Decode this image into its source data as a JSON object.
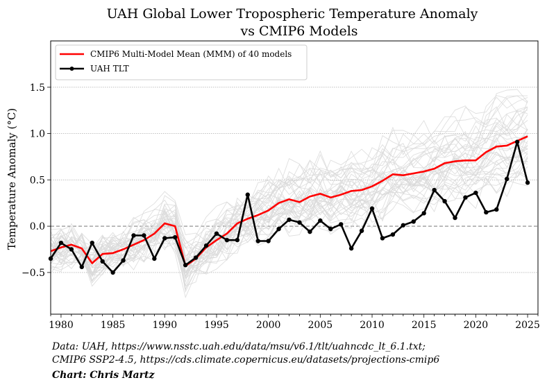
{
  "chart_data": {
    "type": "line",
    "title": "UAH Global Lower Tropospheric Temperature Anomaly",
    "subtitle": "vs CMIP6 Models",
    "xlabel": "",
    "ylabel": "Temperature Anomaly (°C)",
    "xlim": [
      1979,
      2026
    ],
    "ylim": [
      -0.95,
      2.0
    ],
    "x_ticks": [
      1980,
      1985,
      1990,
      1995,
      2000,
      2005,
      2010,
      2015,
      2020,
      2025
    ],
    "y_ticks": [
      -0.5,
      0.0,
      0.5,
      1.0,
      1.5
    ],
    "grid": "horizontal dotted",
    "zero_line": "dashed",
    "legend_position": "top-left",
    "colors": {
      "mmm": "#ff0000",
      "uah": "#000000",
      "models": "#d9d9d9"
    },
    "x": [
      1979,
      1980,
      1981,
      1982,
      1983,
      1984,
      1985,
      1986,
      1987,
      1988,
      1989,
      1990,
      1991,
      1992,
      1993,
      1994,
      1995,
      1996,
      1997,
      1998,
      1999,
      2000,
      2001,
      2002,
      2003,
      2004,
      2005,
      2006,
      2007,
      2008,
      2009,
      2010,
      2011,
      2012,
      2013,
      2014,
      2015,
      2016,
      2017,
      2018,
      2019,
      2020,
      2021,
      2022,
      2023,
      2024,
      2025
    ],
    "series": [
      {
        "name": "CMIP6 Multi-Model Mean (MMM) of 40 models",
        "values": [
          -0.27,
          -0.23,
          -0.2,
          -0.24,
          -0.4,
          -0.3,
          -0.29,
          -0.25,
          -0.2,
          -0.15,
          -0.08,
          0.03,
          0.0,
          -0.43,
          -0.35,
          -0.23,
          -0.15,
          -0.08,
          0.03,
          0.08,
          0.12,
          0.17,
          0.25,
          0.29,
          0.26,
          0.32,
          0.35,
          0.31,
          0.34,
          0.38,
          0.39,
          0.43,
          0.49,
          0.56,
          0.55,
          0.57,
          0.59,
          0.62,
          0.68,
          0.7,
          0.71,
          0.71,
          0.8,
          0.86,
          0.87,
          0.92,
          0.97
        ]
      },
      {
        "name": "UAH TLT",
        "values": [
          -0.35,
          -0.18,
          -0.25,
          -0.44,
          -0.18,
          -0.38,
          -0.5,
          -0.37,
          -0.1,
          -0.1,
          -0.35,
          -0.13,
          -0.12,
          -0.42,
          -0.34,
          -0.21,
          -0.08,
          -0.15,
          -0.15,
          0.34,
          -0.16,
          -0.16,
          -0.03,
          0.07,
          0.04,
          -0.06,
          0.06,
          -0.03,
          0.02,
          -0.24,
          -0.05,
          0.19,
          -0.13,
          -0.09,
          0.01,
          0.05,
          0.14,
          0.39,
          0.27,
          0.09,
          0.31,
          0.36,
          0.15,
          0.18,
          0.51,
          0.91,
          0.47
        ]
      }
    ]
  },
  "legend": {
    "mmm_label": "CMIP6 Multi-Model Mean (MMM) of 40 models",
    "uah_label": "UAH TLT"
  },
  "footer": {
    "source_line1": "Data: UAH, https://www.nsstc.uah.edu/data/msu/v6.1/tlt/uahncdc_lt_6.1.txt;",
    "source_line2": "CMIP6 SSP2-4.5, https://cds.climate.copernicus.eu/datasets/projections-cmip6",
    "credit": "Chart: Chris Martz"
  }
}
